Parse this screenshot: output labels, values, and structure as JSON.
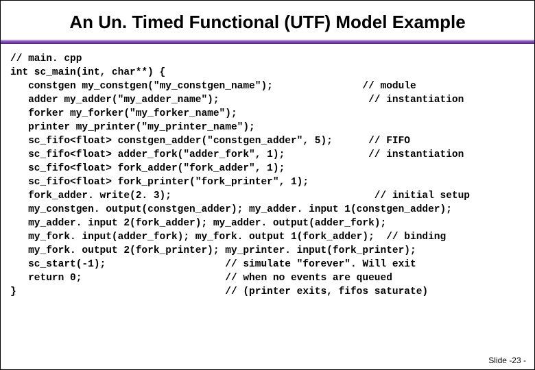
{
  "title": "An Un. Timed Functional (UTF) Model Example",
  "footer": "Slide -23 -",
  "colors": {
    "background": "#ffffff",
    "text": "#000000",
    "divider_light": "#b48ad6",
    "divider_mid": "#8a5cb8",
    "divider_dark": "#5a2a8a"
  },
  "code": {
    "font_family": "Courier New",
    "font_size": 14.5,
    "font_weight": "bold",
    "lines": [
      "// main. cpp",
      "int sc_main(int, char**) {",
      "   constgen my_constgen(\"my_constgen_name\");               // module",
      "   adder my_adder(\"my_adder_name\");                         // instantiation",
      "   forker my_forker(\"my_forker_name\");",
      "   printer my_printer(\"my_printer_name\");",
      "   sc_fifo<float> constgen_adder(\"constgen_adder\", 5);      // FIFO",
      "   sc_fifo<float> adder_fork(\"adder_fork\", 1);              // instantiation",
      "   sc_fifo<float> fork_adder(\"fork_adder\", 1);",
      "   sc_fifo<float> fork_printer(\"fork_printer\", 1);",
      "   fork_adder. write(2. 3);                                  // initial setup",
      "   my_constgen. output(constgen_adder); my_adder. input 1(constgen_adder);",
      "   my_adder. input 2(fork_adder); my_adder. output(adder_fork);",
      "   my_fork. input(adder_fork); my_fork. output 1(fork_adder);  // binding",
      "   my_fork. output 2(fork_printer); my_printer. input(fork_printer);",
      "   sc_start(-1);                    // simulate \"forever\". Will exit",
      "   return 0;                        // when no events are queued",
      "}                                   // (printer exits, fifos saturate)"
    ]
  }
}
